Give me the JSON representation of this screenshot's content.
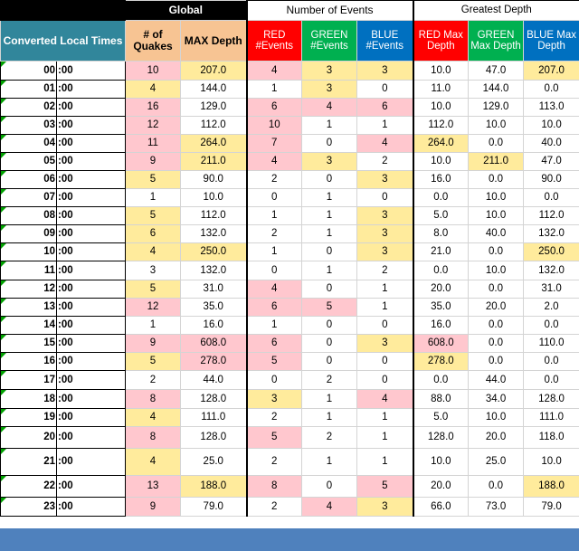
{
  "header": {
    "global": "Global",
    "events": "Number of Events",
    "depth": "Greatest Depth",
    "time_col": "Converted Local Times",
    "quakes_col": "# of Quakes",
    "max_depth_col": "MAX Depth",
    "red_events": "RED #Events",
    "green_events": "GREEN #Events",
    "blue_events": "BLUE #Events",
    "red_depth": "RED Max Depth",
    "green_depth": "GREEN Max Depth",
    "blue_depth": "BLUE Max Depth"
  },
  "colors": {
    "teal": "#31869b",
    "tan": "#f7c493",
    "red": "#ff0000",
    "green": "#00b050",
    "blue": "#0070c0",
    "pink_fill": "#ffc7ce",
    "yellow_fill": "#ffeb9c",
    "footer": "#4f81bd"
  },
  "fill_legend": {
    "p": "pink",
    "y": "yellow",
    "": "none"
  },
  "rows": [
    {
      "hour": "00",
      "min": ":00",
      "quakes": "10",
      "max_depth": "207.0",
      "red_n": "4",
      "green_n": "3",
      "blue_n": "3",
      "red_d": "10.0",
      "green_d": "47.0",
      "blue_d": "207.0",
      "fill": [
        "p",
        "y",
        "p",
        "y",
        "y",
        "",
        "",
        "y"
      ]
    },
    {
      "hour": "01",
      "min": ":00",
      "quakes": "4",
      "max_depth": "144.0",
      "red_n": "1",
      "green_n": "3",
      "blue_n": "0",
      "red_d": "11.0",
      "green_d": "144.0",
      "blue_d": "0.0",
      "fill": [
        "y",
        "",
        "",
        "y",
        "",
        "",
        "",
        ""
      ]
    },
    {
      "hour": "02",
      "min": ":00",
      "quakes": "16",
      "max_depth": "129.0",
      "red_n": "6",
      "green_n": "4",
      "blue_n": "6",
      "red_d": "10.0",
      "green_d": "129.0",
      "blue_d": "113.0",
      "fill": [
        "p",
        "",
        "p",
        "p",
        "p",
        "",
        "",
        ""
      ]
    },
    {
      "hour": "03",
      "min": ":00",
      "quakes": "12",
      "max_depth": "112.0",
      "red_n": "10",
      "green_n": "1",
      "blue_n": "1",
      "red_d": "112.0",
      "green_d": "10.0",
      "blue_d": "10.0",
      "fill": [
        "p",
        "",
        "p",
        "",
        "",
        "",
        "",
        ""
      ]
    },
    {
      "hour": "04",
      "min": ":00",
      "quakes": "11",
      "max_depth": "264.0",
      "red_n": "7",
      "green_n": "0",
      "blue_n": "4",
      "red_d": "264.0",
      "green_d": "0.0",
      "blue_d": "40.0",
      "fill": [
        "p",
        "y",
        "p",
        "",
        "p",
        "y",
        "",
        ""
      ]
    },
    {
      "hour": "05",
      "min": ":00",
      "quakes": "9",
      "max_depth": "211.0",
      "red_n": "4",
      "green_n": "3",
      "blue_n": "2",
      "red_d": "10.0",
      "green_d": "211.0",
      "blue_d": "47.0",
      "fill": [
        "p",
        "y",
        "p",
        "y",
        "",
        "",
        "y",
        ""
      ]
    },
    {
      "hour": "06",
      "min": ":00",
      "quakes": "5",
      "max_depth": "90.0",
      "red_n": "2",
      "green_n": "0",
      "blue_n": "3",
      "red_d": "16.0",
      "green_d": "0.0",
      "blue_d": "90.0",
      "fill": [
        "y",
        "",
        "",
        "",
        "y",
        "",
        "",
        ""
      ]
    },
    {
      "hour": "07",
      "min": ":00",
      "quakes": "1",
      "max_depth": "10.0",
      "red_n": "0",
      "green_n": "1",
      "blue_n": "0",
      "red_d": "0.0",
      "green_d": "10.0",
      "blue_d": "0.0",
      "fill": [
        "",
        "",
        "",
        "",
        "",
        "",
        "",
        ""
      ]
    },
    {
      "hour": "08",
      "min": ":00",
      "quakes": "5",
      "max_depth": "112.0",
      "red_n": "1",
      "green_n": "1",
      "blue_n": "3",
      "red_d": "5.0",
      "green_d": "10.0",
      "blue_d": "112.0",
      "fill": [
        "y",
        "",
        "",
        "",
        "y",
        "",
        "",
        ""
      ]
    },
    {
      "hour": "09",
      "min": ":00",
      "quakes": "6",
      "max_depth": "132.0",
      "red_n": "2",
      "green_n": "1",
      "blue_n": "3",
      "red_d": "8.0",
      "green_d": "40.0",
      "blue_d": "132.0",
      "fill": [
        "y",
        "",
        "",
        "",
        "y",
        "",
        "",
        ""
      ]
    },
    {
      "hour": "10",
      "min": ":00",
      "quakes": "4",
      "max_depth": "250.0",
      "red_n": "1",
      "green_n": "0",
      "blue_n": "3",
      "red_d": "21.0",
      "green_d": "0.0",
      "blue_d": "250.0",
      "fill": [
        "y",
        "y",
        "",
        "",
        "y",
        "",
        "",
        "y"
      ]
    },
    {
      "hour": "11",
      "min": ":00",
      "quakes": "3",
      "max_depth": "132.0",
      "red_n": "0",
      "green_n": "1",
      "blue_n": "2",
      "red_d": "0.0",
      "green_d": "10.0",
      "blue_d": "132.0",
      "fill": [
        "",
        "",
        "",
        "",
        "",
        "",
        "",
        ""
      ]
    },
    {
      "hour": "12",
      "min": ":00",
      "quakes": "5",
      "max_depth": "31.0",
      "red_n": "4",
      "green_n": "0",
      "blue_n": "1",
      "red_d": "20.0",
      "green_d": "0.0",
      "blue_d": "31.0",
      "fill": [
        "y",
        "",
        "p",
        "",
        "",
        "",
        "",
        ""
      ]
    },
    {
      "hour": "13",
      "min": ":00",
      "quakes": "12",
      "max_depth": "35.0",
      "red_n": "6",
      "green_n": "5",
      "blue_n": "1",
      "red_d": "35.0",
      "green_d": "20.0",
      "blue_d": "2.0",
      "fill": [
        "p",
        "",
        "p",
        "p",
        "",
        "",
        "",
        ""
      ]
    },
    {
      "hour": "14",
      "min": ":00",
      "quakes": "1",
      "max_depth": "16.0",
      "red_n": "1",
      "green_n": "0",
      "blue_n": "0",
      "red_d": "16.0",
      "green_d": "0.0",
      "blue_d": "0.0",
      "fill": [
        "",
        "",
        "",
        "",
        "",
        "",
        "",
        ""
      ]
    },
    {
      "hour": "15",
      "min": ":00",
      "quakes": "9",
      "max_depth": "608.0",
      "red_n": "6",
      "green_n": "0",
      "blue_n": "3",
      "red_d": "608.0",
      "green_d": "0.0",
      "blue_d": "110.0",
      "fill": [
        "p",
        "p",
        "p",
        "",
        "y",
        "p",
        "",
        ""
      ]
    },
    {
      "hour": "16",
      "min": ":00",
      "quakes": "5",
      "max_depth": "278.0",
      "red_n": "5",
      "green_n": "0",
      "blue_n": "0",
      "red_d": "278.0",
      "green_d": "0.0",
      "blue_d": "0.0",
      "fill": [
        "y",
        "p",
        "p",
        "",
        "",
        "y",
        "",
        ""
      ]
    },
    {
      "hour": "17",
      "min": ":00",
      "quakes": "2",
      "max_depth": "44.0",
      "red_n": "0",
      "green_n": "2",
      "blue_n": "0",
      "red_d": "0.0",
      "green_d": "44.0",
      "blue_d": "0.0",
      "fill": [
        "",
        "",
        "",
        "",
        "",
        "",
        "",
        ""
      ]
    },
    {
      "hour": "18",
      "min": ":00",
      "quakes": "8",
      "max_depth": "128.0",
      "red_n": "3",
      "green_n": "1",
      "blue_n": "4",
      "red_d": "88.0",
      "green_d": "34.0",
      "blue_d": "128.0",
      "fill": [
        "p",
        "",
        "y",
        "",
        "p",
        "",
        "",
        ""
      ]
    },
    {
      "hour": "19",
      "min": ":00",
      "quakes": "4",
      "max_depth": "111.0",
      "red_n": "2",
      "green_n": "1",
      "blue_n": "1",
      "red_d": "5.0",
      "green_d": "10.0",
      "blue_d": "111.0",
      "fill": [
        "y",
        "",
        "",
        "",
        "",
        "",
        "",
        ""
      ]
    },
    {
      "hour": "20",
      "min": ":00",
      "quakes": "8",
      "max_depth": "128.0",
      "red_n": "5",
      "green_n": "2",
      "blue_n": "1",
      "red_d": "128.0",
      "green_d": "20.0",
      "blue_d": "118.0",
      "fill": [
        "p",
        "",
        "p",
        "",
        "",
        "",
        "",
        ""
      ]
    },
    {
      "hour": "21",
      "min": ":00",
      "quakes": "4",
      "max_depth": "25.0",
      "red_n": "2",
      "green_n": "1",
      "blue_n": "1",
      "red_d": "10.0",
      "green_d": "25.0",
      "blue_d": "10.0",
      "fill": [
        "y",
        "",
        "",
        "",
        "",
        "",
        "",
        ""
      ]
    },
    {
      "hour": "22",
      "min": ":00",
      "quakes": "13",
      "max_depth": "188.0",
      "red_n": "8",
      "green_n": "0",
      "blue_n": "5",
      "red_d": "20.0",
      "green_d": "0.0",
      "blue_d": "188.0",
      "fill": [
        "p",
        "y",
        "p",
        "",
        "p",
        "",
        "",
        "y"
      ]
    },
    {
      "hour": "23",
      "min": ":00",
      "quakes": "9",
      "max_depth": "79.0",
      "red_n": "2",
      "green_n": "4",
      "blue_n": "3",
      "red_d": "66.0",
      "green_d": "73.0",
      "blue_d": "79.0",
      "fill": [
        "p",
        "",
        "",
        "p",
        "y",
        "",
        "",
        ""
      ]
    }
  ]
}
